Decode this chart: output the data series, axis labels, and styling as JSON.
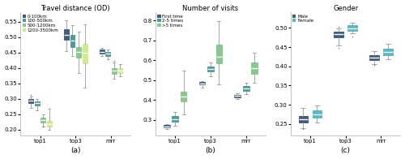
{
  "title_a": "Travel distance (OD)",
  "title_b": "Number of visits",
  "title_c": "Gender",
  "xlabel_a": "(a)",
  "xlabel_b": "(b)",
  "xlabel_c": "(c)",
  "xtick_labels": [
    "top1",
    "top3",
    "mrr"
  ],
  "panel_a": {
    "legend_labels": [
      "0-100km",
      "100-500km",
      "500-1200km",
      "1200-3500km"
    ],
    "colors": [
      "#1b3f6e",
      "#2a8a8c",
      "#72bf7a",
      "#c8e87a"
    ],
    "groups": [
      "top1",
      "top3",
      "mrr"
    ],
    "boxes": {
      "top1": [
        {
          "whislo": 0.27,
          "q1": 0.287,
          "med": 0.293,
          "q3": 0.3,
          "whishi": 0.307,
          "fliers": [
            0.312
          ]
        },
        {
          "whislo": 0.263,
          "q1": 0.278,
          "med": 0.285,
          "q3": 0.292,
          "whishi": 0.3,
          "fliers": []
        },
        {
          "whislo": 0.21,
          "q1": 0.223,
          "med": 0.23,
          "q3": 0.238,
          "whishi": 0.248,
          "fliers": [
            0.208
          ]
        },
        {
          "whislo": 0.198,
          "q1": 0.208,
          "med": 0.218,
          "q3": 0.228,
          "whishi": 0.268,
          "fliers": []
        }
      ],
      "top3": [
        {
          "whislo": 0.455,
          "q1": 0.49,
          "med": 0.508,
          "q3": 0.525,
          "whishi": 0.555,
          "fliers": []
        },
        {
          "whislo": 0.438,
          "q1": 0.468,
          "med": 0.488,
          "q3": 0.508,
          "whishi": 0.538,
          "fliers": []
        },
        {
          "whislo": 0.382,
          "q1": 0.432,
          "med": 0.452,
          "q3": 0.468,
          "whishi": 0.518,
          "fliers": []
        },
        {
          "whislo": 0.335,
          "q1": 0.415,
          "med": 0.45,
          "q3": 0.478,
          "whishi": 0.542,
          "fliers": []
        }
      ],
      "mrr": [
        {
          "whislo": 0.438,
          "q1": 0.446,
          "med": 0.453,
          "q3": 0.46,
          "whishi": 0.464,
          "fliers": []
        },
        {
          "whislo": 0.428,
          "q1": 0.438,
          "med": 0.446,
          "q3": 0.453,
          "whishi": 0.46,
          "fliers": []
        },
        {
          "whislo": 0.365,
          "q1": 0.38,
          "med": 0.39,
          "q3": 0.398,
          "whishi": 0.418,
          "fliers": [
            0.422
          ]
        },
        {
          "whislo": 0.372,
          "q1": 0.382,
          "med": 0.392,
          "q3": 0.4,
          "whishi": 0.412,
          "fliers": []
        }
      ]
    },
    "ylim": [
      0.18,
      0.58
    ],
    "yticks": [
      0.2,
      0.25,
      0.3,
      0.35,
      0.4,
      0.45,
      0.5,
      0.55
    ]
  },
  "panel_b": {
    "legend_labels": [
      "First time",
      "2-5 times",
      ">5 times"
    ],
    "colors": [
      "#1b3f6e",
      "#2a8a8c",
      "#72bf7a"
    ],
    "groups": [
      "top1",
      "top3",
      "mrr"
    ],
    "boxes": {
      "top1": [
        {
          "whislo": 0.255,
          "q1": 0.262,
          "med": 0.267,
          "q3": 0.272,
          "whishi": 0.278,
          "fliers": []
        },
        {
          "whislo": 0.268,
          "q1": 0.288,
          "med": 0.303,
          "q3": 0.318,
          "whishi": 0.34,
          "fliers": []
        },
        {
          "whislo": 0.325,
          "q1": 0.39,
          "med": 0.415,
          "q3": 0.442,
          "whishi": 0.548,
          "fliers": []
        }
      ],
      "top3": [
        {
          "whislo": 0.463,
          "q1": 0.476,
          "med": 0.483,
          "q3": 0.49,
          "whishi": 0.496,
          "fliers": []
        },
        {
          "whislo": 0.518,
          "q1": 0.542,
          "med": 0.556,
          "q3": 0.568,
          "whishi": 0.588,
          "fliers": []
        },
        {
          "whislo": 0.478,
          "q1": 0.585,
          "med": 0.618,
          "q3": 0.678,
          "whishi": 0.798,
          "fliers": []
        }
      ],
      "mrr": [
        {
          "whislo": 0.403,
          "q1": 0.413,
          "med": 0.42,
          "q3": 0.426,
          "whishi": 0.433,
          "fliers": []
        },
        {
          "whislo": 0.43,
          "q1": 0.446,
          "med": 0.458,
          "q3": 0.47,
          "whishi": 0.488,
          "fliers": []
        },
        {
          "whislo": 0.488,
          "q1": 0.532,
          "med": 0.558,
          "q3": 0.588,
          "whishi": 0.638,
          "fliers": []
        }
      ]
    },
    "ylim": [
      0.22,
      0.84
    ],
    "yticks": [
      0.3,
      0.4,
      0.5,
      0.6,
      0.7,
      0.8
    ]
  },
  "panel_c": {
    "legend_labels": [
      "Male",
      "Female"
    ],
    "colors": [
      "#1b3f6e",
      "#3aacbc"
    ],
    "groups": [
      "top1",
      "top3",
      "mrr"
    ],
    "boxes": {
      "top1": [
        {
          "whislo": 0.24,
          "q1": 0.255,
          "med": 0.262,
          "q3": 0.27,
          "whishi": 0.292,
          "fliers": [
            0.237
          ]
        },
        {
          "whislo": 0.254,
          "q1": 0.266,
          "med": 0.276,
          "q3": 0.286,
          "whishi": 0.298,
          "fliers": []
        }
      ],
      "top3": [
        {
          "whislo": 0.454,
          "q1": 0.476,
          "med": 0.484,
          "q3": 0.49,
          "whishi": 0.498,
          "fliers": [
            0.448,
            0.503
          ]
        },
        {
          "whislo": 0.486,
          "q1": 0.493,
          "med": 0.499,
          "q3": 0.506,
          "whishi": 0.513,
          "fliers": [
            0.478
          ]
        }
      ],
      "mrr": [
        {
          "whislo": 0.406,
          "q1": 0.416,
          "med": 0.422,
          "q3": 0.428,
          "whishi": 0.44,
          "fliers": [
            0.403
          ]
        },
        {
          "whislo": 0.418,
          "q1": 0.43,
          "med": 0.438,
          "q3": 0.446,
          "whishi": 0.458,
          "fliers": []
        }
      ]
    },
    "ylim": [
      0.22,
      0.54
    ],
    "yticks": [
      0.25,
      0.3,
      0.35,
      0.4,
      0.45,
      0.5
    ]
  }
}
